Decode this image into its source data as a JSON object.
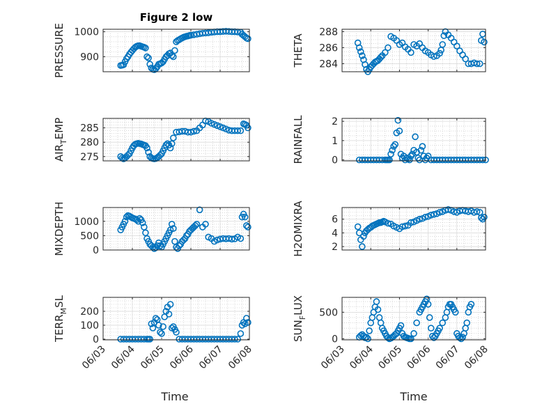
{
  "figure": {
    "title": "Figure 2 low",
    "marker_color": "#0072BD",
    "x_axis": {
      "label": "Time",
      "tick_labels": [
        "06/03",
        "06/04",
        "06/05",
        "06/06",
        "06/07",
        "06/08"
      ],
      "range_days": [
        0,
        5
      ]
    }
  },
  "chart_data": [
    {
      "type": "scatter",
      "ylabel": "PRESSURE",
      "ylabel_sub": "",
      "ylabel_tail": "",
      "ylim": [
        840,
        1010
      ],
      "yticks": [
        900,
        1000
      ],
      "minor_step": 20,
      "x": [
        0.6,
        0.65,
        0.7,
        0.75,
        0.8,
        0.85,
        0.9,
        0.95,
        1.0,
        1.05,
        1.1,
        1.15,
        1.2,
        1.25,
        1.3,
        1.35,
        1.4,
        1.45,
        1.5,
        1.55,
        1.6,
        1.65,
        1.7,
        1.75,
        1.8,
        1.85,
        1.9,
        1.95,
        2.0,
        2.05,
        2.1,
        2.15,
        2.2,
        2.25,
        2.3,
        2.35,
        2.4,
        2.45,
        2.5,
        2.55,
        2.6,
        2.65,
        2.7,
        2.75,
        2.8,
        2.85,
        2.9,
        2.95,
        3.0,
        3.1,
        3.2,
        3.3,
        3.4,
        3.5,
        3.6,
        3.7,
        3.8,
        3.9,
        4.0,
        4.1,
        4.2,
        4.3,
        4.4,
        4.5,
        4.6,
        4.7,
        4.75,
        4.8,
        4.85,
        4.9,
        4.95
      ],
      "y": [
        865,
        866,
        868,
        880,
        892,
        900,
        910,
        918,
        925,
        932,
        938,
        942,
        944,
        944,
        942,
        940,
        938,
        935,
        900,
        895,
        870,
        855,
        850,
        848,
        852,
        860,
        870,
        872,
        875,
        880,
        890,
        900,
        905,
        912,
        915,
        905,
        900,
        925,
        960,
        965,
        968,
        972,
        975,
        978,
        980,
        982,
        983,
        985,
        986,
        988,
        990,
        992,
        994,
        995,
        996,
        998,
        999,
        1000,
        1000,
        1001,
        1002,
        1001,
        1000,
        1000,
        999,
        998,
        990,
        985,
        980,
        975,
        972
      ]
    },
    {
      "type": "scatter",
      "ylabel": "THETA",
      "ylabel_sub": "",
      "ylabel_tail": "",
      "ylim": [
        283,
        288.3
      ],
      "yticks": [
        284,
        286,
        288
      ],
      "minor_step": 0.5,
      "x": [
        0.55,
        0.6,
        0.65,
        0.7,
        0.75,
        0.8,
        0.85,
        0.9,
        0.95,
        1.0,
        1.05,
        1.1,
        1.15,
        1.2,
        1.25,
        1.3,
        1.35,
        1.4,
        1.5,
        1.6,
        1.7,
        1.8,
        1.9,
        2.0,
        2.1,
        2.2,
        2.3,
        2.4,
        2.5,
        2.6,
        2.7,
        2.8,
        2.9,
        3.0,
        3.1,
        3.2,
        3.3,
        3.4,
        3.45,
        3.5,
        3.55,
        3.6,
        3.7,
        3.8,
        3.9,
        4.0,
        4.1,
        4.2,
        4.3,
        4.4,
        4.5,
        4.6,
        4.7,
        4.8,
        4.85,
        4.9,
        4.95
      ],
      "y": [
        286.6,
        286.0,
        285.5,
        285.0,
        284.5,
        283.9,
        283.3,
        283.0,
        283.3,
        283.6,
        283.8,
        284.0,
        284.2,
        284.3,
        284.4,
        284.6,
        284.8,
        285.0,
        285.4,
        286.0,
        287.4,
        287.2,
        286.9,
        286.4,
        286.6,
        286.1,
        285.8,
        285.4,
        286.4,
        286.2,
        286.5,
        286.0,
        285.6,
        285.4,
        285.1,
        284.9,
        285.0,
        285.3,
        285.7,
        286.4,
        287.5,
        288.0,
        287.6,
        287.2,
        286.7,
        286.2,
        285.6,
        285.1,
        284.6,
        284.0,
        284.0,
        284.1,
        284.0,
        284.0,
        286.9,
        287.7,
        286.7
      ]
    },
    {
      "type": "scatter",
      "ylabel": "AIR",
      "ylabel_sub": "T",
      "ylabel_tail": "EMP",
      "ylim": [
        273.5,
        288.3
      ],
      "yticks": [
        275,
        280,
        285
      ],
      "minor_step": 1,
      "x": [
        0.6,
        0.65,
        0.7,
        0.75,
        0.8,
        0.85,
        0.9,
        0.95,
        1.0,
        1.05,
        1.1,
        1.15,
        1.2,
        1.25,
        1.3,
        1.35,
        1.4,
        1.45,
        1.5,
        1.55,
        1.6,
        1.65,
        1.7,
        1.75,
        1.8,
        1.85,
        1.9,
        1.95,
        2.0,
        2.05,
        2.1,
        2.15,
        2.2,
        2.25,
        2.3,
        2.35,
        2.4,
        2.5,
        2.6,
        2.7,
        2.8,
        2.9,
        3.0,
        3.1,
        3.2,
        3.3,
        3.4,
        3.5,
        3.6,
        3.7,
        3.8,
        3.9,
        4.0,
        4.1,
        4.2,
        4.3,
        4.4,
        4.5,
        4.6,
        4.7,
        4.8,
        4.85,
        4.9,
        4.95
      ],
      "y": [
        275.0,
        274.5,
        274.2,
        274.5,
        275.0,
        275.5,
        276.0,
        277.0,
        278.0,
        278.8,
        279.3,
        279.5,
        279.6,
        279.5,
        279.4,
        279.2,
        279.0,
        278.8,
        278.0,
        276.5,
        275.0,
        274.5,
        274.3,
        274.2,
        274.3,
        274.6,
        275.0,
        275.5,
        276.0,
        277.0,
        278.0,
        279.0,
        279.5,
        279.0,
        278.0,
        279.5,
        281.5,
        283.5,
        283.6,
        283.8,
        283.8,
        283.5,
        283.5,
        283.8,
        284.0,
        285.0,
        286.0,
        287.4,
        287.2,
        286.6,
        286.2,
        285.8,
        285.4,
        285.0,
        284.6,
        284.2,
        284.0,
        284.0,
        284.0,
        284.0,
        286.4,
        286.2,
        285.9,
        285.0
      ]
    },
    {
      "type": "scatter",
      "ylabel": "RAINFALL",
      "ylabel_sub": "",
      "ylabel_tail": "",
      "ylim": [
        -0.05,
        2.15
      ],
      "yticks": [
        0,
        1,
        2
      ],
      "minor_step": 0.25,
      "x": [
        0.6,
        0.7,
        0.8,
        0.9,
        1.0,
        1.1,
        1.2,
        1.3,
        1.4,
        1.5,
        1.55,
        1.6,
        1.65,
        1.7,
        1.75,
        1.8,
        1.85,
        1.9,
        1.95,
        2.0,
        2.05,
        2.1,
        2.15,
        2.2,
        2.25,
        2.3,
        2.35,
        2.4,
        2.45,
        2.5,
        2.55,
        2.6,
        2.65,
        2.7,
        2.75,
        2.8,
        2.85,
        2.9,
        2.95,
        3.0,
        3.1,
        3.2,
        3.3,
        3.4,
        3.5,
        3.6,
        3.7,
        3.8,
        3.9,
        4.0,
        4.1,
        4.2,
        4.3,
        4.4,
        4.5,
        4.6,
        4.7,
        4.8,
        4.9,
        5.0
      ],
      "y": [
        0,
        0,
        0,
        0,
        0,
        0,
        0,
        0,
        0,
        0,
        0,
        0,
        0,
        0.3,
        0.5,
        0.7,
        0.8,
        1.4,
        2.05,
        1.5,
        0.3,
        0.1,
        0.2,
        0,
        0.1,
        0.05,
        0,
        0.2,
        0.3,
        0.5,
        1.2,
        0.4,
        0.1,
        0,
        0.5,
        0.7,
        0.2,
        0,
        0.1,
        0.2,
        0,
        0,
        0,
        0,
        0,
        0,
        0,
        0,
        0,
        0,
        0,
        0,
        0,
        0,
        0,
        0,
        0,
        0,
        0,
        0
      ]
    },
    {
      "type": "scatter",
      "ylabel": "MIXDEPTH",
      "ylabel_sub": "",
      "ylabel_tail": "",
      "ylim": [
        0,
        1480
      ],
      "yticks": [
        0,
        500,
        1000
      ],
      "minor_step": 100,
      "x": [
        0.6,
        0.65,
        0.7,
        0.75,
        0.8,
        0.85,
        0.9,
        0.95,
        1.0,
        1.05,
        1.1,
        1.15,
        1.2,
        1.25,
        1.3,
        1.35,
        1.4,
        1.45,
        1.5,
        1.55,
        1.6,
        1.65,
        1.7,
        1.75,
        1.8,
        1.85,
        1.9,
        1.95,
        2.0,
        2.05,
        2.1,
        2.15,
        2.2,
        2.25,
        2.3,
        2.35,
        2.4,
        2.45,
        2.5,
        2.55,
        2.6,
        2.65,
        2.7,
        2.75,
        2.8,
        2.85,
        2.9,
        2.95,
        3.0,
        3.05,
        3.1,
        3.15,
        3.2,
        3.3,
        3.4,
        3.5,
        3.6,
        3.7,
        3.8,
        3.9,
        4.0,
        4.1,
        4.2,
        4.3,
        4.4,
        4.5,
        4.6,
        4.7,
        4.75,
        4.8,
        4.85,
        4.9,
        4.95
      ],
      "y": [
        700,
        800,
        900,
        1000,
        1150,
        1200,
        1180,
        1150,
        1120,
        1100,
        1080,
        1050,
        1000,
        1100,
        1050,
        950,
        800,
        600,
        400,
        300,
        200,
        150,
        100,
        50,
        80,
        150,
        250,
        150,
        100,
        200,
        300,
        400,
        500,
        600,
        700,
        900,
        750,
        300,
        100,
        50,
        150,
        200,
        300,
        350,
        400,
        500,
        550,
        650,
        700,
        750,
        800,
        850,
        900,
        1400,
        800,
        900,
        450,
        400,
        300,
        350,
        380,
        400,
        390,
        400,
        380,
        390,
        450,
        400,
        1150,
        1250,
        1150,
        850,
        800
      ]
    },
    {
      "type": "scatter",
      "ylabel": "H2OMIXRA",
      "ylabel_sub": "",
      "ylabel_tail": "",
      "ylim": [
        1.5,
        7.7
      ],
      "yticks": [
        2,
        4,
        6
      ],
      "minor_step": 0.5,
      "x": [
        0.55,
        0.6,
        0.65,
        0.7,
        0.75,
        0.8,
        0.85,
        0.9,
        0.95,
        1.0,
        1.05,
        1.1,
        1.15,
        1.2,
        1.25,
        1.3,
        1.35,
        1.4,
        1.45,
        1.5,
        1.6,
        1.7,
        1.8,
        1.9,
        2.0,
        2.1,
        2.2,
        2.3,
        2.4,
        2.5,
        2.6,
        2.7,
        2.8,
        2.9,
        3.0,
        3.1,
        3.2,
        3.3,
        3.4,
        3.5,
        3.6,
        3.7,
        3.8,
        3.9,
        4.0,
        4.1,
        4.2,
        4.3,
        4.4,
        4.5,
        4.6,
        4.7,
        4.8,
        4.85,
        4.9,
        4.95
      ],
      "y": [
        4.9,
        4.0,
        3.0,
        2.0,
        3.5,
        4.0,
        4.3,
        4.5,
        4.7,
        4.8,
        5.0,
        5.1,
        5.2,
        5.3,
        5.4,
        5.5,
        5.5,
        5.6,
        5.7,
        5.6,
        5.4,
        5.3,
        5.0,
        4.8,
        4.6,
        4.9,
        5.0,
        5.1,
        5.5,
        5.6,
        5.8,
        6.0,
        6.1,
        6.3,
        6.4,
        6.6,
        6.7,
        6.8,
        7.0,
        7.1,
        7.3,
        7.4,
        7.3,
        7.1,
        7.0,
        7.2,
        7.3,
        7.2,
        7.1,
        7.2,
        7.0,
        7.1,
        7.0,
        6.2,
        6.0,
        6.3
      ]
    },
    {
      "type": "scatter",
      "ylabel": "TERR",
      "ylabel_sub": "M",
      "ylabel_tail": "SL",
      "ylim": [
        -5,
        300
      ],
      "yticks": [
        0,
        100,
        200
      ],
      "minor_step": 25,
      "x": [
        0.6,
        0.7,
        0.8,
        0.9,
        1.0,
        1.1,
        1.2,
        1.3,
        1.4,
        1.5,
        1.55,
        1.6,
        1.65,
        1.7,
        1.75,
        1.8,
        1.85,
        1.9,
        1.95,
        2.0,
        2.05,
        2.1,
        2.15,
        2.2,
        2.25,
        2.3,
        2.35,
        2.4,
        2.45,
        2.5,
        2.6,
        2.7,
        2.8,
        2.9,
        3.0,
        3.1,
        3.2,
        3.3,
        3.4,
        3.5,
        3.6,
        3.7,
        3.8,
        3.9,
        4.0,
        4.1,
        4.2,
        4.3,
        4.4,
        4.5,
        4.6,
        4.7,
        4.75,
        4.8,
        4.85,
        4.9,
        4.95
      ],
      "y": [
        0,
        0,
        0,
        0,
        0,
        0,
        0,
        0,
        0,
        0,
        0,
        0,
        110,
        80,
        120,
        150,
        140,
        100,
        50,
        40,
        90,
        160,
        200,
        230,
        180,
        250,
        80,
        90,
        70,
        50,
        0,
        0,
        0,
        0,
        0,
        0,
        0,
        0,
        0,
        0,
        0,
        0,
        0,
        0,
        0,
        0,
        0,
        0,
        0,
        0,
        0,
        40,
        100,
        120,
        110,
        150,
        120
      ]
    },
    {
      "type": "scatter",
      "ylabel": "SUN",
      "ylabel_sub": "F",
      "ylabel_tail": "LUX",
      "ylim": [
        -20,
        780
      ],
      "yticks": [
        0,
        500
      ],
      "minor_step": 100,
      "x": [
        0.6,
        0.65,
        0.7,
        0.75,
        0.8,
        0.85,
        0.9,
        0.95,
        1.0,
        1.05,
        1.1,
        1.15,
        1.2,
        1.25,
        1.3,
        1.35,
        1.4,
        1.45,
        1.5,
        1.55,
        1.6,
        1.65,
        1.7,
        1.75,
        1.8,
        1.85,
        1.9,
        1.95,
        2.0,
        2.05,
        2.1,
        2.15,
        2.2,
        2.25,
        2.3,
        2.35,
        2.4,
        2.5,
        2.6,
        2.7,
        2.75,
        2.8,
        2.85,
        2.9,
        2.95,
        3.0,
        3.05,
        3.1,
        3.15,
        3.2,
        3.25,
        3.3,
        3.35,
        3.4,
        3.5,
        3.6,
        3.65,
        3.7,
        3.75,
        3.8,
        3.85,
        3.9,
        3.95,
        4.0,
        4.05,
        4.1,
        4.15,
        4.2,
        4.25,
        4.3,
        4.35,
        4.4,
        4.45,
        4.5
      ],
      "y": [
        30,
        60,
        80,
        50,
        20,
        30,
        0,
        150,
        300,
        400,
        500,
        600,
        700,
        550,
        400,
        300,
        200,
        150,
        100,
        50,
        20,
        0,
        10,
        30,
        50,
        80,
        100,
        150,
        200,
        250,
        100,
        50,
        30,
        20,
        10,
        0,
        0,
        100,
        300,
        500,
        550,
        600,
        650,
        700,
        750,
        650,
        400,
        200,
        50,
        20,
        50,
        100,
        150,
        200,
        300,
        400,
        500,
        600,
        650,
        650,
        600,
        550,
        500,
        100,
        50,
        20,
        0,
        30,
        100,
        200,
        300,
        500,
        600,
        650
      ]
    }
  ]
}
